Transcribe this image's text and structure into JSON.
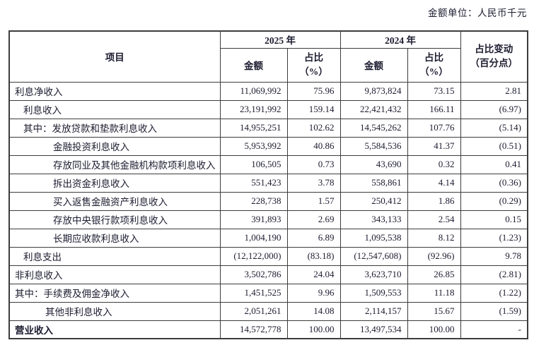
{
  "unit_note": "金额单位：人民币千元",
  "table": {
    "headers": {
      "item": "项目",
      "year_2025": "2025 年",
      "year_2024": "2024 年",
      "amount": "金额",
      "share_line1": "占比",
      "share_line2": "（%）",
      "change_line1": "占比变动",
      "change_line2": "（百分点）"
    },
    "rows": [
      {
        "label": "利息净收入",
        "indent": 0,
        "bold": false,
        "amount_2025": "11,069,992",
        "share_2025": "75.96",
        "amount_2024": "9,873,824",
        "share_2024": "73.15",
        "change": "2.81"
      },
      {
        "label": "利息收入",
        "indent": 1,
        "bold": false,
        "amount_2025": "23,191,992",
        "share_2025": "159.14",
        "amount_2024": "22,421,432",
        "share_2024": "166.11",
        "change": "(6.97)"
      },
      {
        "label": "其中：发放贷款和垫款利息收入",
        "indent": 1,
        "bold": false,
        "amount_2025": "14,955,251",
        "share_2025": "102.62",
        "amount_2024": "14,545,262",
        "share_2024": "107.76",
        "change": "(5.14)"
      },
      {
        "label": "金融投资利息收入",
        "indent": 2,
        "bold": false,
        "amount_2025": "5,953,992",
        "share_2025": "40.86",
        "amount_2024": "5,584,536",
        "share_2024": "41.37",
        "change": "(0.51)"
      },
      {
        "label": "存放同业及其他金融机构款项利息收入",
        "indent": 2,
        "bold": false,
        "amount_2025": "106,505",
        "share_2025": "0.73",
        "amount_2024": "43,690",
        "share_2024": "0.32",
        "change": "0.41"
      },
      {
        "label": "拆出资金利息收入",
        "indent": 2,
        "bold": false,
        "amount_2025": "551,423",
        "share_2025": "3.78",
        "amount_2024": "558,861",
        "share_2024": "4.14",
        "change": "(0.36)"
      },
      {
        "label": "买入返售金融资产利息收入",
        "indent": 2,
        "bold": false,
        "amount_2025": "228,738",
        "share_2025": "1.57",
        "amount_2024": "250,412",
        "share_2024": "1.86",
        "change": "(0.29)"
      },
      {
        "label": "存放中央银行款项利息收入",
        "indent": 2,
        "bold": false,
        "amount_2025": "391,893",
        "share_2025": "2.69",
        "amount_2024": "343,133",
        "share_2024": "2.54",
        "change": "0.15"
      },
      {
        "label": "长期应收款利息收入",
        "indent": 2,
        "bold": false,
        "amount_2025": "1,004,190",
        "share_2025": "6.89",
        "amount_2024": "1,095,538",
        "share_2024": "8.12",
        "change": "(1.23)"
      },
      {
        "label": "利息支出",
        "indent": 1,
        "bold": false,
        "amount_2025": "(12,122,000)",
        "share_2025": "(83.18)",
        "amount_2024": "(12,547,608)",
        "share_2024": "(92.96)",
        "change": "9.78"
      },
      {
        "label": "非利息收入",
        "indent": 0,
        "bold": false,
        "amount_2025": "3,502,786",
        "share_2025": "24.04",
        "amount_2024": "3,623,710",
        "share_2024": "26.85",
        "change": "(2.81)"
      },
      {
        "label": "其中：手续费及佣金净收入",
        "indent": 0,
        "bold": false,
        "amount_2025": "1,451,525",
        "share_2025": "9.96",
        "amount_2024": "1,509,553",
        "share_2024": "11.18",
        "change": "(1.22)"
      },
      {
        "label": "其他非利息收入",
        "indent": 3,
        "bold": false,
        "amount_2025": "2,051,261",
        "share_2025": "14.08",
        "amount_2024": "2,114,157",
        "share_2024": "15.67",
        "change": "(1.59)"
      },
      {
        "label": "营业收入",
        "indent": 0,
        "bold": true,
        "amount_2025": "14,572,778",
        "share_2025": "100.00",
        "amount_2024": "13,497,534",
        "share_2024": "100.00",
        "change": "-"
      }
    ]
  }
}
